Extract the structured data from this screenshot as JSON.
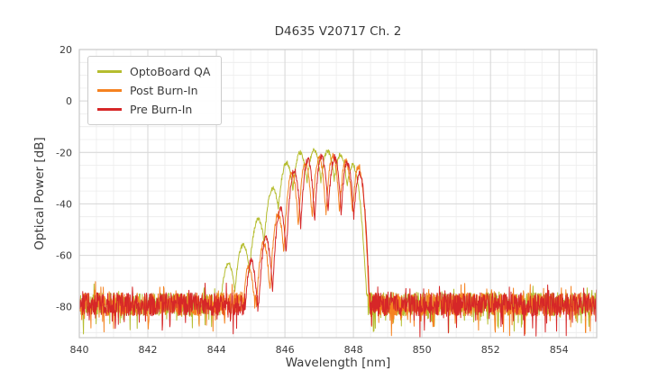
{
  "chart_data": {
    "type": "line",
    "title": "D4635 V20717 Ch. 2",
    "xlabel": "Wavelength [nm]",
    "ylabel": "Optical Power [dB]",
    "xlim": [
      840,
      855.1
    ],
    "ylim": [
      -92,
      20
    ],
    "xticks": [
      840,
      842,
      844,
      846,
      848,
      850,
      852,
      854
    ],
    "yticks": [
      -80,
      -60,
      -40,
      -20,
      0,
      20
    ],
    "minor_x_step": 0.5,
    "minor_y_step": 5,
    "grid": true,
    "legend_position": "upper-left",
    "sample_step_nm": 0.01,
    "noise": {
      "base_db": -79,
      "band_db": 9,
      "spike_db": 9
    },
    "series": [
      {
        "name": "OptoBoard QA",
        "color": "#b5bd2f",
        "seed": 101,
        "jitter_db": 0.9,
        "dip_sharpness": 310,
        "signal_range_nm": [
          844.1,
          848.25
        ],
        "modes": [
          [
            844.35,
            -63
          ],
          [
            844.78,
            -56
          ],
          [
            845.22,
            -46
          ],
          [
            845.65,
            -34
          ],
          [
            846.05,
            -24
          ],
          [
            846.45,
            -20
          ],
          [
            846.85,
            -19
          ],
          [
            847.25,
            -19.5
          ],
          [
            847.62,
            -21
          ],
          [
            847.98,
            -25
          ]
        ]
      },
      {
        "name": "Post Burn-In",
        "color": "#f58220",
        "seed": 202,
        "jitter_db": 1.3,
        "dip_sharpness": 560,
        "signal_range_nm": [
          844.6,
          848.45
        ],
        "modes": [
          [
            844.95,
            -64
          ],
          [
            845.38,
            -55
          ],
          [
            845.8,
            -44
          ],
          [
            846.2,
            -28
          ],
          [
            846.6,
            -24
          ],
          [
            847.0,
            -22
          ],
          [
            847.4,
            -21.5
          ],
          [
            847.78,
            -23.5
          ],
          [
            848.15,
            -25.5
          ]
        ]
      },
      {
        "name": "Pre Burn-In",
        "color": "#d62728",
        "seed": 303,
        "jitter_db": 1.3,
        "dip_sharpness": 600,
        "signal_range_nm": [
          844.7,
          848.4
        ],
        "modes": [
          [
            845.02,
            -62
          ],
          [
            845.45,
            -53
          ],
          [
            845.87,
            -42
          ],
          [
            846.27,
            -27
          ],
          [
            846.67,
            -23
          ],
          [
            847.07,
            -21.5
          ],
          [
            847.45,
            -22
          ],
          [
            847.82,
            -24
          ],
          [
            848.18,
            -28
          ]
        ]
      }
    ]
  }
}
